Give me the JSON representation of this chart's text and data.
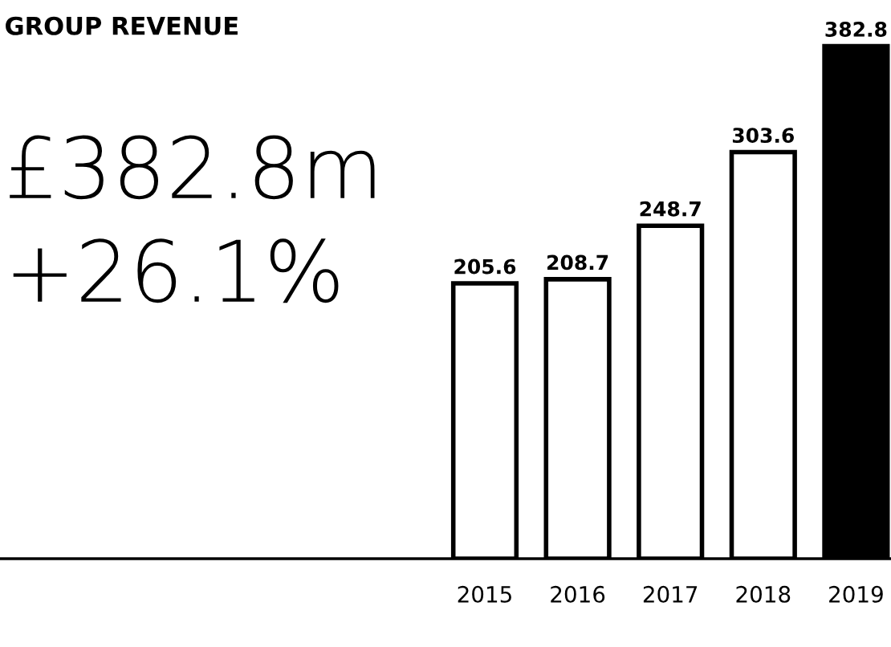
{
  "chart_data": {
    "type": "bar",
    "title": "GROUP REVENUE",
    "categories": [
      "2015",
      "2016",
      "2017",
      "2018",
      "2019"
    ],
    "values": [
      205.6,
      208.7,
      248.7,
      303.6,
      382.8
    ],
    "colors": [
      "#ffffff",
      "#ffffff",
      "#ffffff",
      "#ffffff",
      "#000000"
    ],
    "data_labels": true,
    "grid": false,
    "legend": false,
    "annotations": [
      "£382.8m",
      "+26.1%"
    ]
  }
}
